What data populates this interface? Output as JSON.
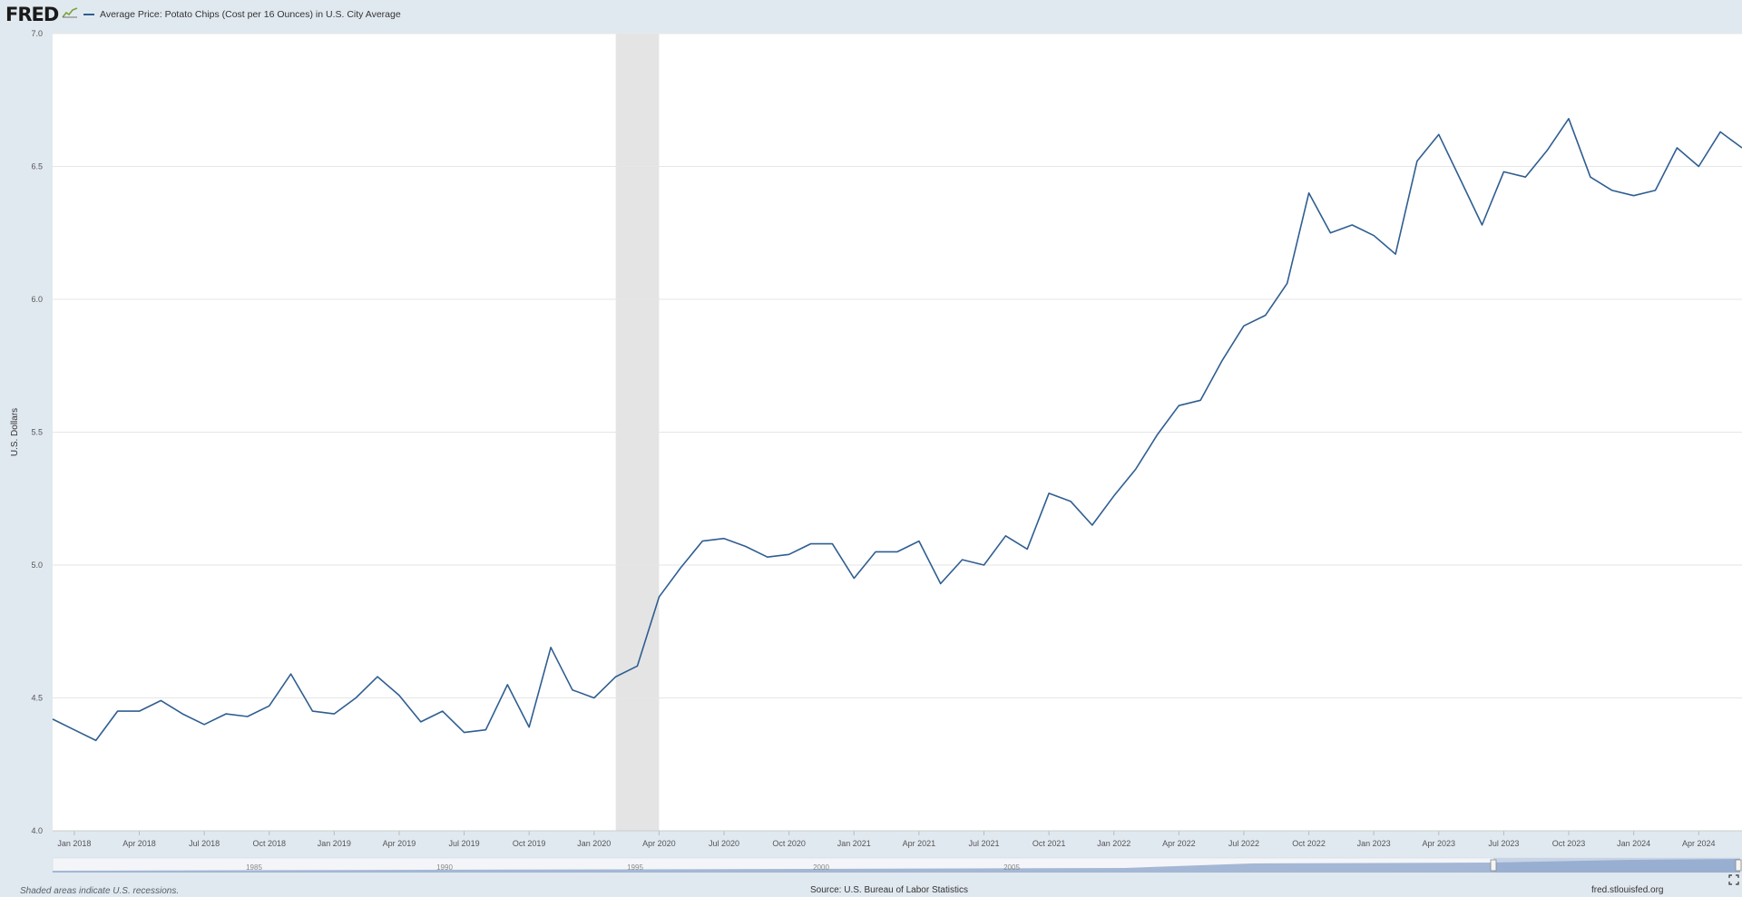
{
  "header": {
    "logo_text": "FRED",
    "logo_icon": "line-chart-icon",
    "legend_label": "Average Price: Potato Chips (Cost per 16 Ounces) in U.S. City Average",
    "legend_color": "#2f5e91"
  },
  "chart_data": {
    "type": "line",
    "title": "",
    "xlabel": "",
    "ylabel": "U.S. Dollars",
    "ylim": [
      4.0,
      7.0
    ],
    "xlim": [
      "2017-12",
      "2024-06"
    ],
    "yticks": [
      {
        "value": 4.0,
        "label": "4.0"
      },
      {
        "value": 4.5,
        "label": "4.5"
      },
      {
        "value": 5.0,
        "label": "5.0"
      },
      {
        "value": 5.5,
        "label": "5.5"
      },
      {
        "value": 6.0,
        "label": "6.0"
      },
      {
        "value": 6.5,
        "label": "6.5"
      },
      {
        "value": 7.0,
        "label": "7.0"
      }
    ],
    "xticks": [
      "Jan 2018",
      "Apr 2018",
      "Jul 2018",
      "Oct 2018",
      "Jan 2019",
      "Apr 2019",
      "Jul 2019",
      "Oct 2019",
      "Jan 2020",
      "Apr 2020",
      "Jul 2020",
      "Oct 2020",
      "Jan 2021",
      "Apr 2021",
      "Jul 2021",
      "Oct 2021",
      "Jan 2022",
      "Apr 2022",
      "Jul 2022",
      "Oct 2022",
      "Jan 2023",
      "Apr 2023",
      "Jul 2023",
      "Oct 2023",
      "Jan 2024",
      "Apr 2024"
    ],
    "grid": true,
    "legend_position": "top-left",
    "recession_shading": [
      {
        "start": "2020-02",
        "end": "2020-04"
      }
    ],
    "series": [
      {
        "name": "Average Price: Potato Chips (Cost per 16 Ounces) in U.S. City Average",
        "color": "#2f5e91",
        "x": [
          "2017-12",
          "2018-01",
          "2018-02",
          "2018-03",
          "2018-04",
          "2018-05",
          "2018-06",
          "2018-07",
          "2018-08",
          "2018-09",
          "2018-10",
          "2018-11",
          "2018-12",
          "2019-01",
          "2019-02",
          "2019-03",
          "2019-04",
          "2019-05",
          "2019-06",
          "2019-07",
          "2019-08",
          "2019-09",
          "2019-10",
          "2019-11",
          "2019-12",
          "2020-01",
          "2020-02",
          "2020-03",
          "2020-04",
          "2020-05",
          "2020-06",
          "2020-07",
          "2020-08",
          "2020-09",
          "2020-10",
          "2020-11",
          "2020-12",
          "2021-01",
          "2021-02",
          "2021-03",
          "2021-04",
          "2021-05",
          "2021-06",
          "2021-07",
          "2021-08",
          "2021-09",
          "2021-10",
          "2021-11",
          "2021-12",
          "2022-01",
          "2022-02",
          "2022-03",
          "2022-04",
          "2022-05",
          "2022-06",
          "2022-07",
          "2022-08",
          "2022-09",
          "2022-10",
          "2022-11",
          "2022-12",
          "2023-01",
          "2023-02",
          "2023-03",
          "2023-04",
          "2023-05",
          "2023-06",
          "2023-07",
          "2023-08",
          "2023-09",
          "2023-10",
          "2023-11",
          "2023-12",
          "2024-01",
          "2024-02",
          "2024-03",
          "2024-04",
          "2024-05",
          "2024-06"
        ],
        "y": [
          4.42,
          4.38,
          4.34,
          4.45,
          4.45,
          4.49,
          4.44,
          4.4,
          4.44,
          4.43,
          4.47,
          4.59,
          4.45,
          4.44,
          4.5,
          4.58,
          4.51,
          4.41,
          4.45,
          4.37,
          4.38,
          4.55,
          4.39,
          4.69,
          4.53,
          4.5,
          4.58,
          4.62,
          4.88,
          4.99,
          5.09,
          5.1,
          5.07,
          5.03,
          5.04,
          5.08,
          5.08,
          4.95,
          5.05,
          5.05,
          5.09,
          4.93,
          5.02,
          5.0,
          5.11,
          5.06,
          5.27,
          5.24,
          5.15,
          5.26,
          5.36,
          5.49,
          5.6,
          5.62,
          5.77,
          5.9,
          5.94,
          6.06,
          6.4,
          6.25,
          6.28,
          6.24,
          6.17,
          6.52,
          6.62,
          6.45,
          6.28,
          6.48,
          6.46,
          6.56,
          6.68,
          6.46,
          6.41,
          6.39,
          6.41,
          6.57,
          6.5,
          6.63,
          6.57
        ]
      }
    ],
    "navigator": {
      "labels": [
        "1985",
        "1990",
        "1995",
        "2000",
        "2005"
      ]
    }
  },
  "footer": {
    "note": "Shaded areas indicate U.S. recessions.",
    "source": "Source: U.S. Bureau of Labor Statistics",
    "url": "fred.stlouisfed.org",
    "fullscreen_icon": "fullscreen-icon"
  }
}
